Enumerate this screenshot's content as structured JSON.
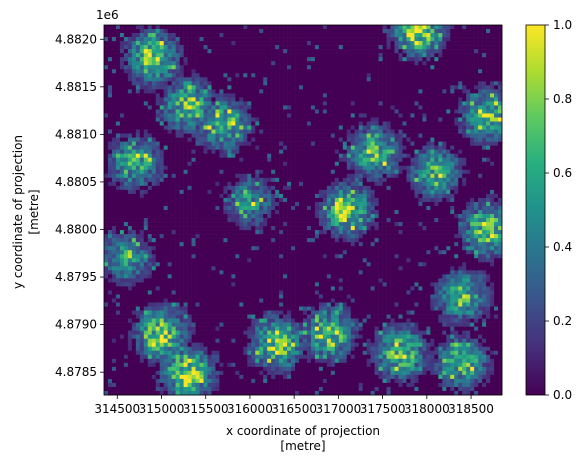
{
  "chart_data": {
    "type": "heatmap",
    "title": "",
    "xlabel_line1": "x coordinate of projection",
    "xlabel_line2": "[metre]",
    "ylabel_line1": "y coordinate of projection",
    "ylabel_line2": "[metre]",
    "y_offset_label": "1e6",
    "xlim": [
      314350,
      318850
    ],
    "ylim": [
      4.87826,
      4.88215
    ],
    "x_ticks": [
      314500,
      315000,
      315500,
      316000,
      316500,
      317000,
      317500,
      318000,
      318500
    ],
    "x_tick_labels": [
      "314500",
      "315000",
      "315500",
      "316000",
      "316500",
      "317000",
      "317500",
      "318000",
      "318500"
    ],
    "y_ticks": [
      4.8785,
      4.879,
      4.8795,
      4.88,
      4.8805,
      4.881,
      4.8815,
      4.882
    ],
    "y_tick_labels": [
      "4.8785",
      "4.8790",
      "4.8795",
      "4.8800",
      "4.8805",
      "4.8810",
      "4.8815",
      "4.8820"
    ],
    "colorbar": {
      "colormap": "viridis",
      "range": [
        0.0,
        1.0
      ],
      "ticks": [
        0.0,
        0.2,
        0.4,
        0.6,
        0.8,
        1.0
      ],
      "tick_labels": [
        "0.0",
        "0.2",
        "0.4",
        "0.6",
        "0.8",
        "1.0"
      ]
    },
    "hotspots": [
      {
        "x": 314900,
        "y": 4.8818,
        "value": 0.85
      },
      {
        "x": 315300,
        "y": 4.8813,
        "value": 0.8
      },
      {
        "x": 314700,
        "y": 4.8807,
        "value": 0.7
      },
      {
        "x": 315700,
        "y": 4.8811,
        "value": 0.75
      },
      {
        "x": 317900,
        "y": 4.8821,
        "value": 0.95
      },
      {
        "x": 317400,
        "y": 4.8808,
        "value": 0.75
      },
      {
        "x": 318100,
        "y": 4.8806,
        "value": 0.7
      },
      {
        "x": 318700,
        "y": 4.8812,
        "value": 0.8
      },
      {
        "x": 318700,
        "y": 4.88,
        "value": 0.85
      },
      {
        "x": 317100,
        "y": 4.8802,
        "value": 0.9
      },
      {
        "x": 315000,
        "y": 4.8789,
        "value": 0.9
      },
      {
        "x": 316300,
        "y": 4.8788,
        "value": 0.85
      },
      {
        "x": 316900,
        "y": 4.8789,
        "value": 0.8
      },
      {
        "x": 317700,
        "y": 4.8787,
        "value": 0.85
      },
      {
        "x": 318400,
        "y": 4.8793,
        "value": 0.75
      },
      {
        "x": 315300,
        "y": 4.8785,
        "value": 0.95
      },
      {
        "x": 314600,
        "y": 4.8797,
        "value": 0.6
      },
      {
        "x": 316000,
        "y": 4.8803,
        "value": 0.55
      },
      {
        "x": 318400,
        "y": 4.8786,
        "value": 0.75
      }
    ]
  }
}
